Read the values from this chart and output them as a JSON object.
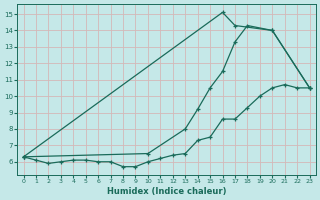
{
  "xlabel": "Humidex (Indice chaleur)",
  "bg_color": "#c5e8e8",
  "grid_color": "#d4b8b8",
  "line_color": "#1a6b5a",
  "xlim": [
    -0.5,
    23.5
  ],
  "ylim": [
    5.2,
    15.6
  ],
  "yticks": [
    6,
    7,
    8,
    9,
    10,
    11,
    12,
    13,
    14,
    15
  ],
  "xticks": [
    0,
    1,
    2,
    3,
    4,
    5,
    6,
    7,
    8,
    9,
    10,
    11,
    12,
    13,
    14,
    15,
    16,
    17,
    18,
    19,
    20,
    21,
    22,
    23
  ],
  "curve_spike_x": [
    0,
    16,
    17,
    20,
    23
  ],
  "curve_spike_y": [
    6.3,
    15.1,
    14.3,
    14.0,
    10.5
  ],
  "curve_diag_x": [
    0,
    10,
    13,
    14,
    15,
    16,
    17,
    18,
    20,
    23
  ],
  "curve_diag_y": [
    6.3,
    6.5,
    8.0,
    9.2,
    10.5,
    11.5,
    13.3,
    14.3,
    14.0,
    10.5
  ],
  "curve_low_x": [
    0,
    1,
    2,
    3,
    4,
    5,
    6,
    7,
    8,
    9,
    10,
    11,
    12,
    13,
    14,
    15,
    16,
    17,
    18,
    19,
    20,
    21,
    22,
    23
  ],
  "curve_low_y": [
    6.3,
    6.1,
    5.9,
    6.0,
    6.1,
    6.1,
    6.0,
    6.0,
    5.7,
    5.7,
    6.0,
    6.2,
    6.4,
    6.5,
    7.3,
    7.5,
    8.6,
    8.6,
    9.3,
    10.0,
    10.5,
    10.7,
    10.5,
    10.5
  ]
}
